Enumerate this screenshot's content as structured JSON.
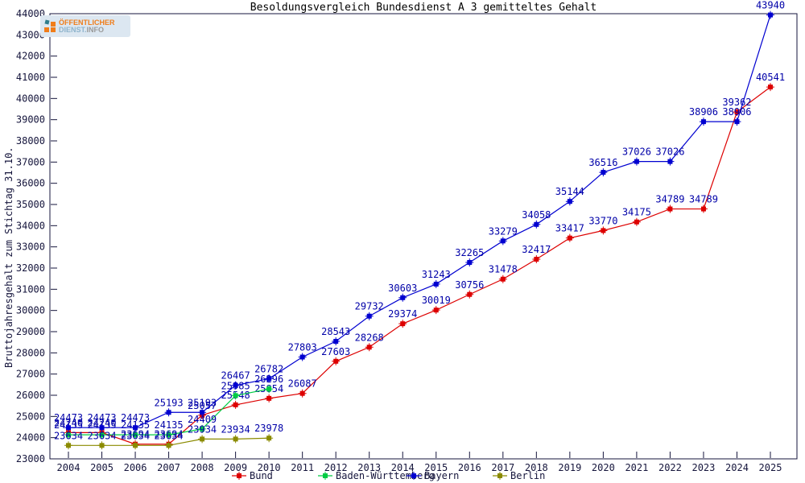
{
  "title": "Besoldungsvergleich Bundesdienst A 3 gemitteltes Gehalt",
  "y_axis_label": "Bruttojahresgehalt zum Stichtag 31.10.",
  "logo": {
    "line1": "ÖFFENTLICHER",
    "line2_dienst": "DIENST.",
    "line2_info": "INFO",
    "orange": "#f07d1a",
    "teal": "#2e7d8c",
    "background": "#dce7f1"
  },
  "chart_data": {
    "type": "line",
    "x": [
      2004,
      2005,
      2006,
      2007,
      2008,
      2009,
      2010,
      2011,
      2012,
      2013,
      2014,
      2015,
      2016,
      2017,
      2018,
      2019,
      2020,
      2021,
      2022,
      2023,
      2024,
      2025
    ],
    "xlabel": "",
    "ylabel": "Bruttojahresgehalt zum Stichtag 31.10.",
    "ylim": [
      23000,
      44000
    ],
    "ytick_step": 1000,
    "grid": false,
    "legend_position": "bottom",
    "point_labels": true,
    "label_color": "#0000a8",
    "axis_color": "#15153c",
    "series": [
      {
        "name": "Bund",
        "color": "#dd0000",
        "values": [
          24240,
          24240,
          23694,
          23694,
          25057,
          25548,
          25854,
          26087,
          27603,
          28268,
          29374,
          30019,
          30756,
          31478,
          32417,
          33417,
          33770,
          34175,
          34789,
          34789,
          39362,
          40541
        ]
      },
      {
        "name": "Baden-Württemberg",
        "color": "#00cc44",
        "values": [
          24135,
          24135,
          24135,
          24135,
          24409,
          25985,
          26296,
          null,
          null,
          null,
          null,
          null,
          null,
          null,
          null,
          null,
          null,
          null,
          null,
          null,
          null,
          null
        ]
      },
      {
        "name": "Bayern",
        "color": "#0000d0",
        "values": [
          24473,
          24473,
          24473,
          25193,
          25193,
          26467,
          26782,
          27803,
          28543,
          29732,
          30603,
          31243,
          32265,
          33279,
          34058,
          35144,
          36516,
          37026,
          37026,
          38906,
          38906,
          43940
        ]
      },
      {
        "name": "Berlin",
        "color": "#8b8b00",
        "values": [
          23634,
          23634,
          23634,
          23634,
          23934,
          23934,
          23978,
          null,
          null,
          null,
          null,
          null,
          null,
          null,
          null,
          null,
          null,
          null,
          null,
          null,
          null,
          null
        ]
      }
    ]
  }
}
